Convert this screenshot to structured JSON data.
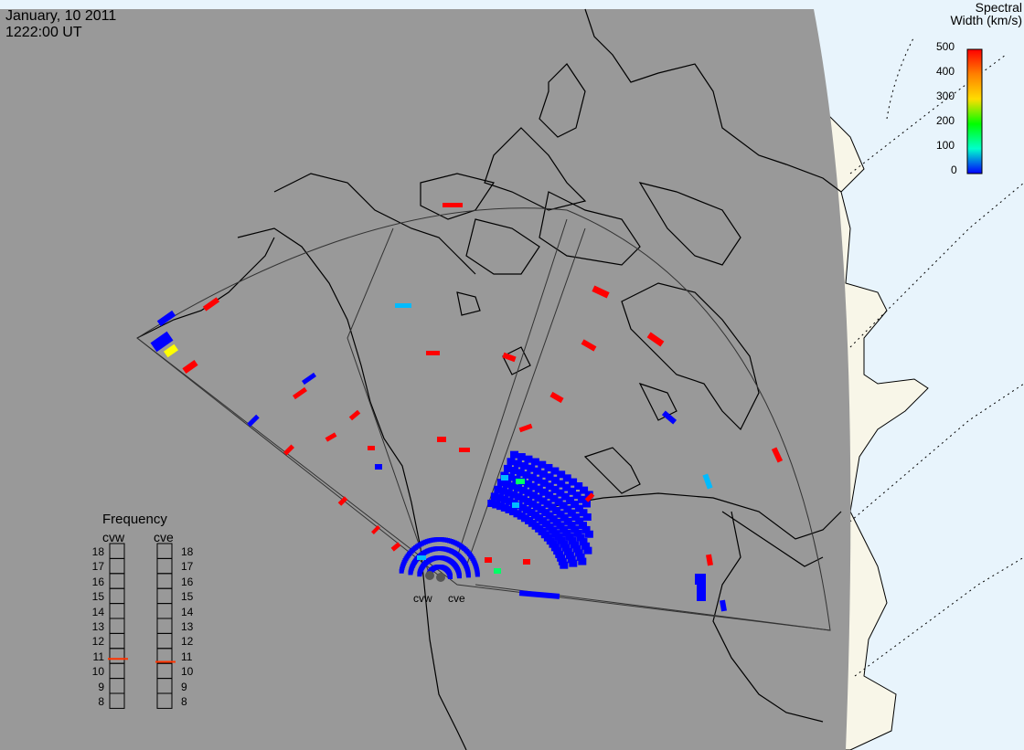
{
  "header": {
    "date": "January, 10 2011",
    "time": "1222:00 UT"
  },
  "colorbar": {
    "title_line1": "Spectral",
    "title_line2": "Width (km/s)",
    "ticks": [
      "500",
      "400",
      "300",
      "200",
      "100",
      "0"
    ],
    "colors": [
      "#ff0000",
      "#ff8000",
      "#ffff00",
      "#00ff00",
      "#00ffcc",
      "#0000ff"
    ]
  },
  "radars": {
    "west_label": "cvw",
    "east_label": "cve"
  },
  "frequency": {
    "title": "Frequency",
    "cvw_label": "cvw",
    "cve_label": "cve",
    "scale": [
      "18",
      "17",
      "16",
      "15",
      "14",
      "13",
      "12",
      "11",
      "10",
      "9",
      "8"
    ],
    "cvw_value": 10.8,
    "cve_value": 10.6,
    "marker_color": "#ff3300"
  },
  "colors": {
    "map_background": "#999999",
    "ocean_outside": "#e8f4fc",
    "land_outside": "#f8f6e8",
    "scatter_blue": "#0000ff",
    "scatter_red": "#ff0000",
    "scatter_cyan": "#00bbff",
    "scatter_green": "#00ff66",
    "scatter_yellow": "#ffff00"
  }
}
